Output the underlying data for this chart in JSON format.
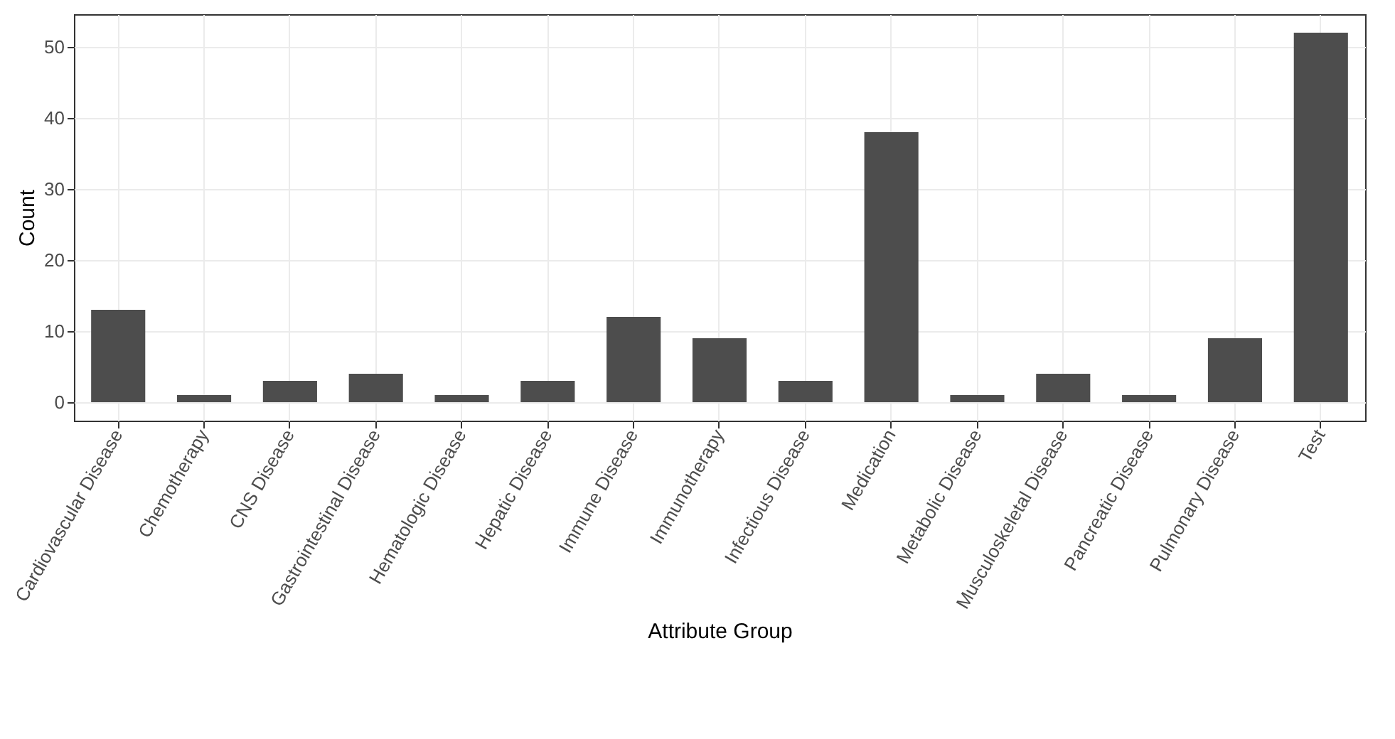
{
  "chart_data": {
    "type": "bar",
    "xlabel": "Attribute Group",
    "ylabel": "Count",
    "categories": [
      "Cardiovascular Disease",
      "Chemotherapy",
      "CNS Disease",
      "Gastrointestinal Disease",
      "Hematologic Disease",
      "Hepatic Disease",
      "Immune Disease",
      "Immunotherapy",
      "Infectious Disease",
      "Medication",
      "Metabolic Disease",
      "Musculoskeletal Disease",
      "Pancreatic Disease",
      "Pulmonary Disease",
      "Test"
    ],
    "values": [
      13,
      1,
      3,
      4,
      1,
      3,
      12,
      9,
      3,
      38,
      1,
      4,
      1,
      9,
      52
    ],
    "color": "#4d4d4d",
    "ylim": [
      -2.6,
      54.6
    ],
    "yticks": [
      0,
      10,
      20,
      30,
      40,
      50
    ],
    "grid": true
  }
}
